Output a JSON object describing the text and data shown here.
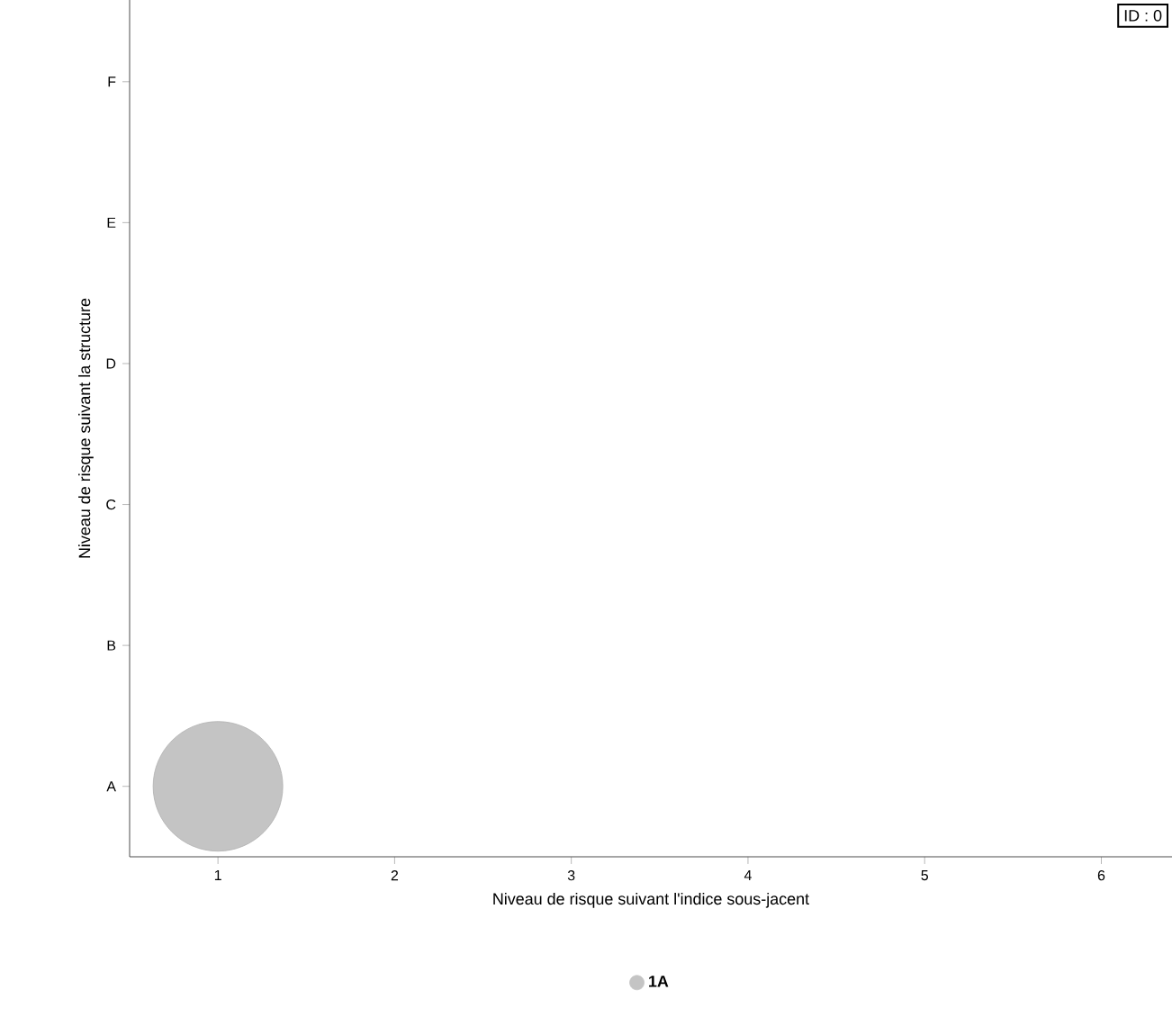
{
  "chart_data": {
    "type": "bubble",
    "orientation": "horizontal",
    "xlabel": "Niveau de risque suivant l'indice sous-jacent",
    "ylabel": "Niveau de risque suivant la structure",
    "annotations": [
      "ID : 0"
    ],
    "xlim": [
      0.5,
      6.4
    ],
    "xticks": [
      1,
      2,
      3,
      4,
      5,
      6
    ],
    "categories": [
      "F",
      "E",
      "D",
      "C",
      "B",
      "A"
    ],
    "legend": "bottom",
    "series": [
      {
        "name": "1A",
        "color": "#c4c4c4",
        "values": [
          null,
          null,
          null,
          null,
          null,
          1
        ],
        "sizes": [
          null,
          null,
          null,
          null,
          null,
          1
        ]
      }
    ]
  }
}
